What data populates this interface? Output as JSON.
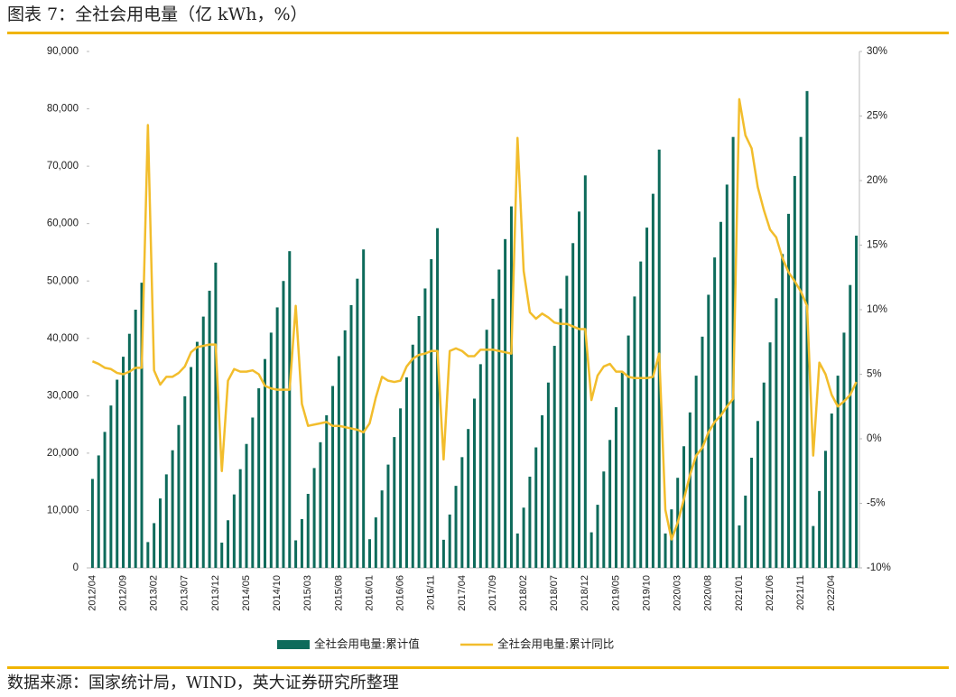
{
  "chart_data": {
    "type": "bar-line",
    "title": "图表 7：全社会用电量（亿 kWh，%）",
    "source": "数据来源：国家统计局，WIND，英大证券研究所整理",
    "categories": [
      "2012/04",
      null,
      null,
      null,
      null,
      "2012/09",
      null,
      null,
      null,
      null,
      "2013/02",
      null,
      null,
      null,
      null,
      "2013/07",
      null,
      null,
      null,
      null,
      "2013/12",
      null,
      null,
      null,
      null,
      "2014/05",
      null,
      null,
      null,
      null,
      "2014/10",
      null,
      null,
      null,
      null,
      "2015/03",
      null,
      null,
      null,
      null,
      "2015/08",
      null,
      null,
      null,
      null,
      "2016/01",
      null,
      null,
      null,
      null,
      "2016/06",
      null,
      null,
      null,
      null,
      "2016/11",
      null,
      null,
      null,
      null,
      "2017/04",
      null,
      null,
      null,
      null,
      "2017/09",
      null,
      null,
      null,
      null,
      "2018/02",
      null,
      null,
      null,
      null,
      "2018/07",
      null,
      null,
      null,
      null,
      "2018/12",
      null,
      null,
      null,
      null,
      "2019/05",
      null,
      null,
      null,
      null,
      "2019/10",
      null,
      null,
      null,
      null,
      "2020/03",
      null,
      null,
      null,
      null,
      "2020/08",
      null,
      null,
      null,
      null,
      "2021/01",
      null,
      null,
      null,
      null,
      "2021/06",
      null,
      null,
      null,
      null,
      "2021/11",
      null,
      null,
      null,
      null,
      "2022/04",
      null,
      null,
      null,
      null
    ],
    "series": [
      {
        "name": "全社会用电量:累计值",
        "color": "#0e6b5b",
        "kind": "bar",
        "axis": "y",
        "values": [
          15500,
          19600,
          23700,
          28300,
          32800,
          36800,
          40800,
          45000,
          49700,
          4500,
          7800,
          12100,
          16300,
          20500,
          24900,
          29900,
          35000,
          39400,
          43800,
          48300,
          53200,
          4400,
          8300,
          12800,
          17200,
          21600,
          26200,
          31300,
          36400,
          41000,
          45400,
          50000,
          55200,
          4800,
          8500,
          12900,
          17400,
          21900,
          26600,
          31700,
          36900,
          41400,
          45800,
          50400,
          55500,
          5000,
          8800,
          13500,
          18000,
          22800,
          27800,
          33200,
          38900,
          43900,
          48700,
          53800,
          59200,
          4900,
          9300,
          14300,
          19300,
          24200,
          29500,
          35500,
          41500,
          46900,
          52000,
          57300,
          63000,
          6000,
          10500,
          15900,
          21000,
          26600,
          32300,
          38700,
          45200,
          50900,
          56600,
          62100,
          68400,
          6200,
          11000,
          16800,
          22300,
          28000,
          34000,
          40500,
          47300,
          53400,
          59300,
          65200,
          72900,
          6000,
          10200,
          15700,
          21200,
          27100,
          33500,
          40300,
          47600,
          54100,
          60300,
          66800,
          75100,
          7400,
          12600,
          19200,
          25600,
          32300,
          39300,
          47000,
          54700,
          61700,
          68300,
          75100,
          83100,
          7300,
          13400,
          20400,
          26900,
          33500,
          41000,
          49300,
          57900
        ]
      },
      {
        "name": "全社会用电量:累计同比",
        "color": "#f2bd2c",
        "kind": "line",
        "axis": "y2",
        "values": [
          6.0,
          5.8,
          5.5,
          5.4,
          5.1,
          5.0,
          5.2,
          5.5,
          5.5,
          24.3,
          5.3,
          4.2,
          4.8,
          4.8,
          5.1,
          5.6,
          6.7,
          7.1,
          7.2,
          7.3,
          7.3,
          -2.5,
          4.5,
          5.4,
          5.2,
          5.2,
          5.3,
          5.0,
          4.1,
          3.9,
          3.8,
          3.8,
          3.8,
          10.3,
          2.7,
          1.0,
          1.1,
          1.2,
          1.3,
          1.0,
          1.0,
          0.9,
          0.8,
          0.7,
          0.5,
          1.2,
          3.2,
          4.8,
          4.5,
          4.4,
          4.5,
          5.6,
          6.2,
          6.5,
          6.6,
          6.8,
          6.8,
          -1.6,
          6.8,
          7.0,
          6.8,
          6.4,
          6.4,
          6.9,
          6.9,
          6.9,
          6.8,
          6.7,
          6.6,
          23.3,
          13.0,
          9.8,
          9.3,
          9.7,
          9.4,
          9.0,
          8.9,
          8.9,
          8.7,
          8.5,
          8.5,
          3.0,
          4.9,
          5.6,
          5.8,
          5.2,
          5.2,
          4.8,
          4.7,
          4.7,
          4.7,
          4.8,
          6.6,
          -5.5,
          -7.8,
          -6.5,
          -4.7,
          -2.8,
          -1.3,
          -0.7,
          0.5,
          1.3,
          1.8,
          2.5,
          3.1,
          26.3,
          23.5,
          22.5,
          19.5,
          17.7,
          16.2,
          15.6,
          14.0,
          12.9,
          12.2,
          11.4,
          10.3,
          -1.3,
          5.9,
          5.0,
          3.4,
          2.5,
          2.9,
          3.4,
          4.4
        ]
      }
    ],
    "ylim": [
      0,
      90000
    ],
    "yticks": [
      0,
      {
        "value": 10000,
        "label": "10,000"
      },
      {
        "value": 20000,
        "label": "20,000"
      },
      {
        "value": 30000,
        "label": "30,000"
      },
      {
        "value": 40000,
        "label": "40,000"
      },
      {
        "value": 50000,
        "label": "50,000"
      },
      {
        "value": 60000,
        "label": "60,000"
      },
      {
        "value": 70000,
        "label": "70,000"
      },
      {
        "value": 80000,
        "label": "80,000"
      },
      {
        "value": 90000,
        "label": "90,000"
      }
    ],
    "y2lim": [
      -10,
      30
    ],
    "y2ticks": [
      {
        "value": -10,
        "label": "-10%"
      },
      {
        "value": -5,
        "label": "-5%"
      },
      {
        "value": 0,
        "label": "0%"
      },
      {
        "value": 5,
        "label": "5%"
      },
      {
        "value": 10,
        "label": "10%"
      },
      {
        "value": 15,
        "label": "15%"
      },
      {
        "value": 20,
        "label": "20%"
      },
      {
        "value": 25,
        "label": "25%"
      },
      {
        "value": 30,
        "label": "30%"
      }
    ],
    "grid": false,
    "legend": "bottom"
  }
}
